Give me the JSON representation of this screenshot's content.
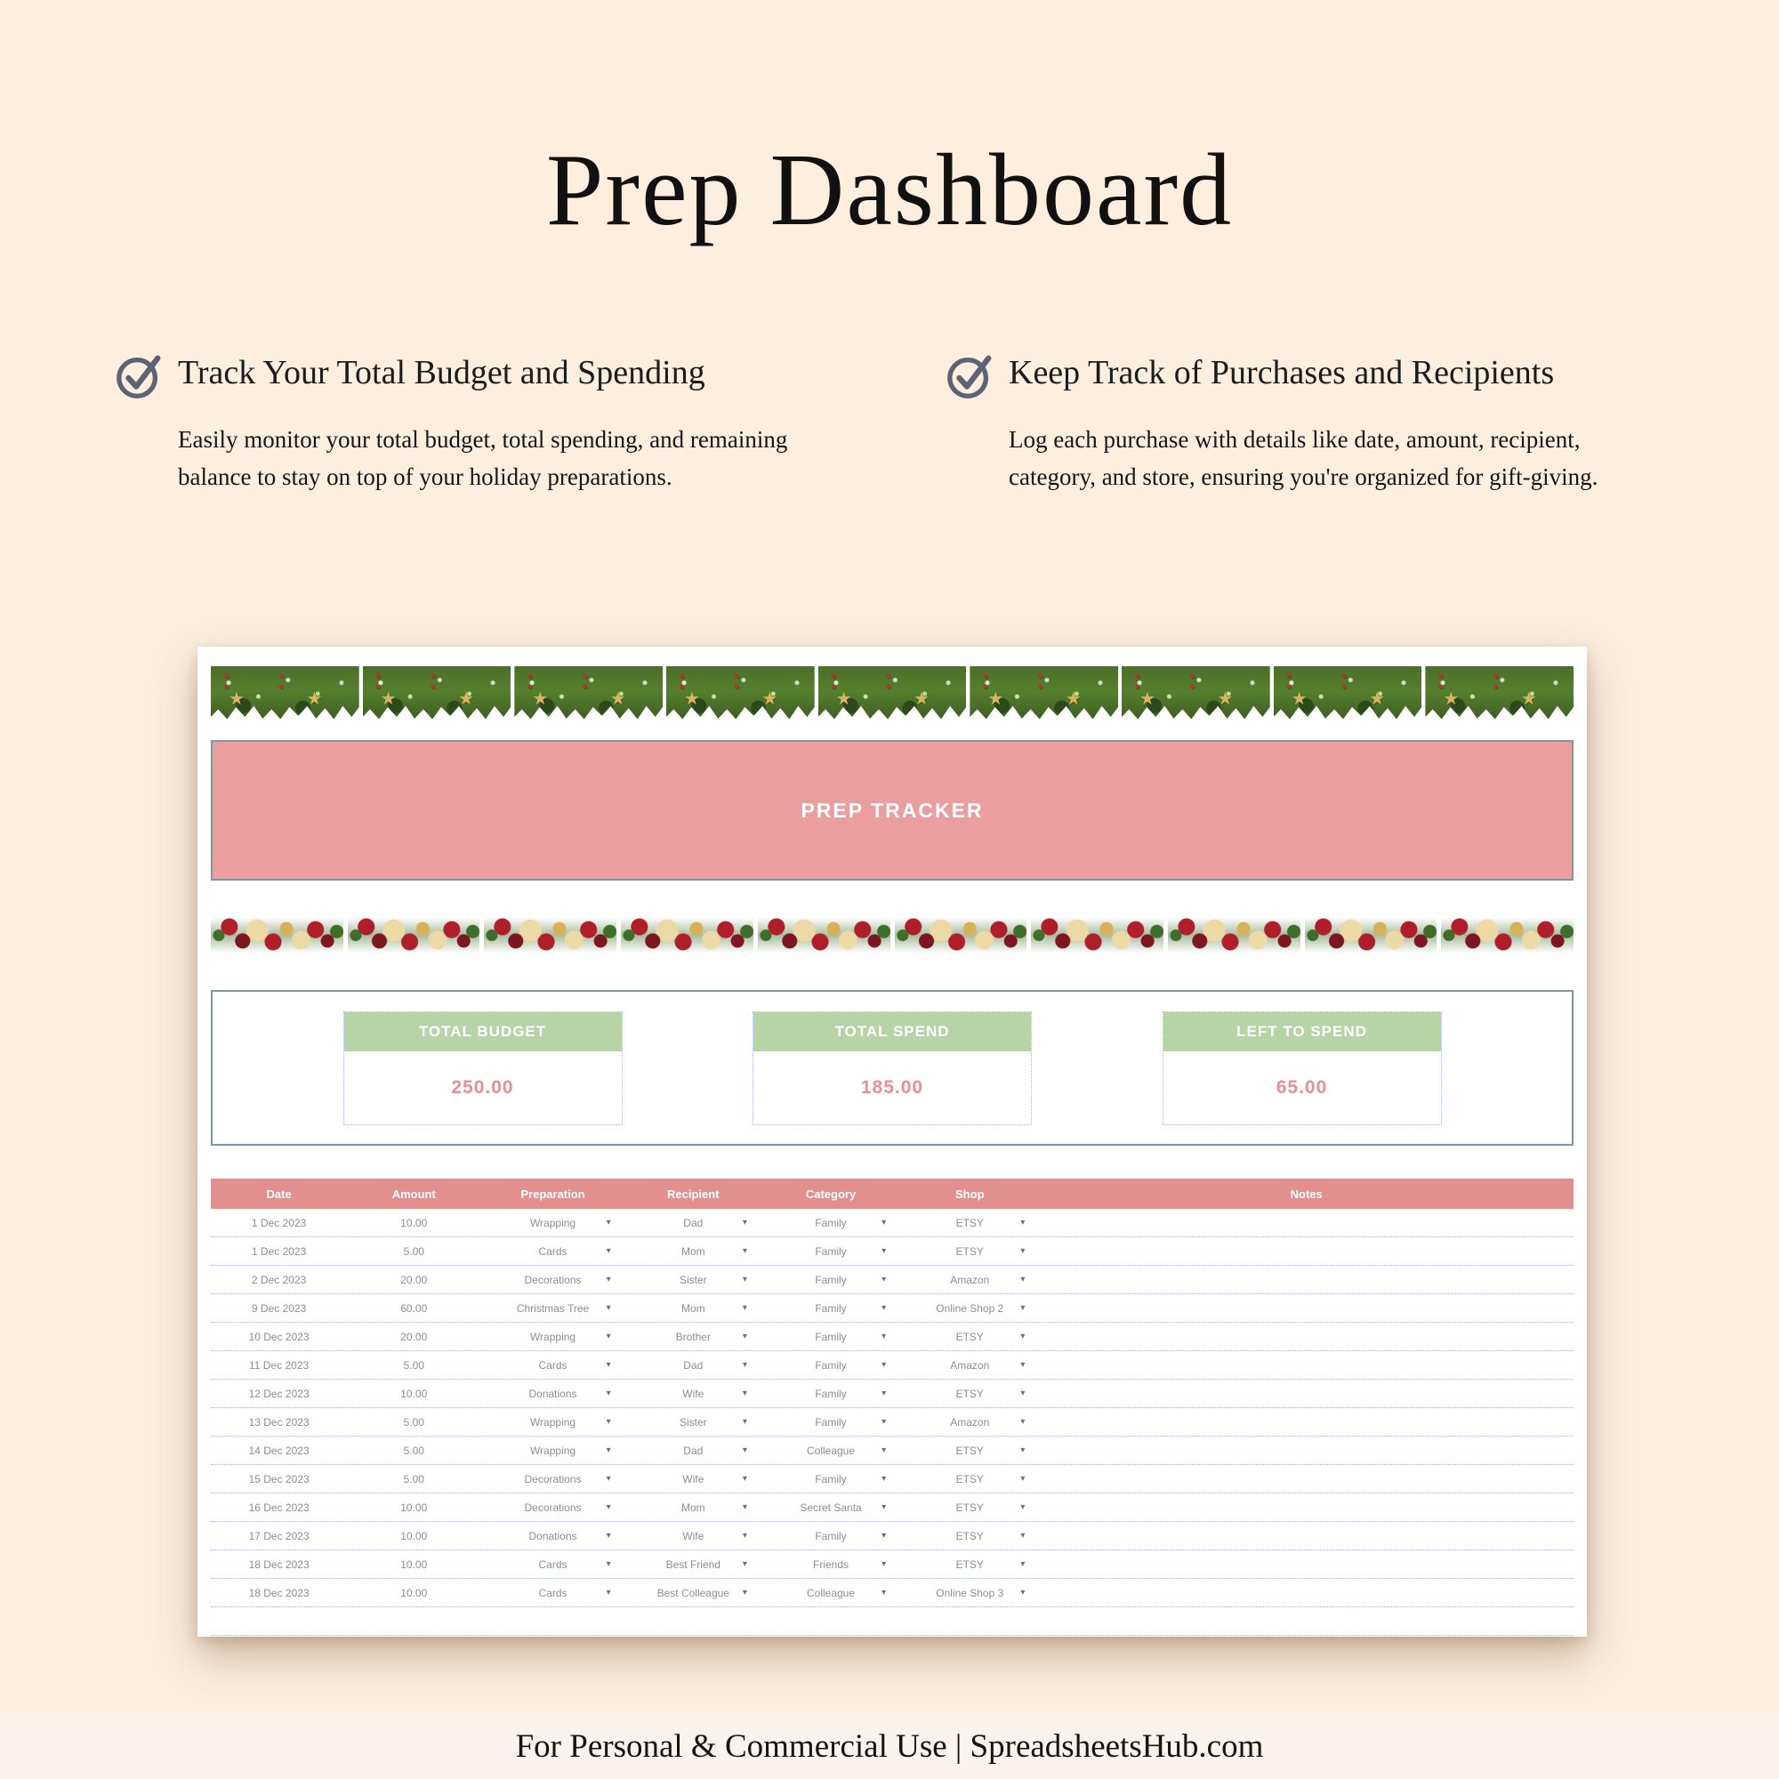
{
  "page": {
    "title": "Prep Dashboard",
    "footer": "For Personal & Commercial Use  |  SpreadsheetsHub.com"
  },
  "features": {
    "items": [
      {
        "icon": "check-circle-icon",
        "heading": "Track Your Total Budget and Spending",
        "body": "Easily monitor your total budget, total spending, and remaining balance to stay on top of your holiday preparations."
      },
      {
        "icon": "check-circle-icon",
        "heading": "Keep Track of Purchases and Recipients",
        "body": "Log each purchase with details like date, amount, recipient, category, and store, ensuring you're organized for gift-giving."
      }
    ]
  },
  "tracker": {
    "banner": "PREP TRACKER",
    "summary": [
      {
        "label": "TOTAL BUDGET",
        "value": "250.00"
      },
      {
        "label": "TOTAL SPEND",
        "value": "185.00"
      },
      {
        "label": "LEFT TO SPEND",
        "value": "65.00"
      }
    ],
    "table": {
      "columns": [
        "Date",
        "Amount",
        "Preparation",
        "Recipient",
        "Category",
        "Shop",
        "Notes"
      ],
      "dropdown_columns": [
        2,
        3,
        4,
        5
      ],
      "rows": [
        [
          "1 Dec 2023",
          "10.00",
          "Wrapping",
          "Dad",
          "Family",
          "ETSY",
          ""
        ],
        [
          "1 Dec 2023",
          "5.00",
          "Cards",
          "Mom",
          "Family",
          "ETSY",
          ""
        ],
        [
          "2 Dec 2023",
          "20.00",
          "Decorations",
          "Sister",
          "Family",
          "Amazon",
          ""
        ],
        [
          "9 Dec 2023",
          "60.00",
          "Christmas Tree",
          "Mom",
          "Family",
          "Online Shop 2",
          ""
        ],
        [
          "10 Dec 2023",
          "20.00",
          "Wrapping",
          "Brother",
          "Family",
          "ETSY",
          ""
        ],
        [
          "11 Dec 2023",
          "5.00",
          "Cards",
          "Dad",
          "Family",
          "Amazon",
          ""
        ],
        [
          "12 Dec 2023",
          "10.00",
          "Donations",
          "Wife",
          "Family",
          "ETSY",
          ""
        ],
        [
          "13 Dec 2023",
          "5.00",
          "Wrapping",
          "Sister",
          "Family",
          "Amazon",
          ""
        ],
        [
          "14 Dec 2023",
          "5.00",
          "Wrapping",
          "Dad",
          "Colleague",
          "ETSY",
          ""
        ],
        [
          "15 Dec 2023",
          "5.00",
          "Decorations",
          "Wife",
          "Family",
          "ETSY",
          ""
        ],
        [
          "16 Dec 2023",
          "10.00",
          "Decorations",
          "Mom",
          "Secret Santa",
          "ETSY",
          ""
        ],
        [
          "17 Dec 2023",
          "10.00",
          "Donations",
          "Wife",
          "Family",
          "ETSY",
          ""
        ],
        [
          "18 Dec 2023",
          "10.00",
          "Cards",
          "Best Friend",
          "Friends",
          "ETSY",
          ""
        ],
        [
          "18 Dec 2023",
          "10.00",
          "Cards",
          "Best Colleague",
          "Colleague",
          "Online Shop 3",
          ""
        ]
      ],
      "empty_rows": 2
    },
    "garland_pine_tiles": 9,
    "garland_flower_tiles": 10
  },
  "colors": {
    "bg": "#fdeedd",
    "footer_bg": "#fbf1ed",
    "banner_pink": "#eb9e9e",
    "header_pink": "#e28f8d",
    "green": "#b6d4a5",
    "value_pink": "#e98f94",
    "border_slate": "#7d96a6",
    "dotted_line": "#a9b3dd",
    "cell_text": "#8d8d8d",
    "check_icon": "#5c6377"
  }
}
